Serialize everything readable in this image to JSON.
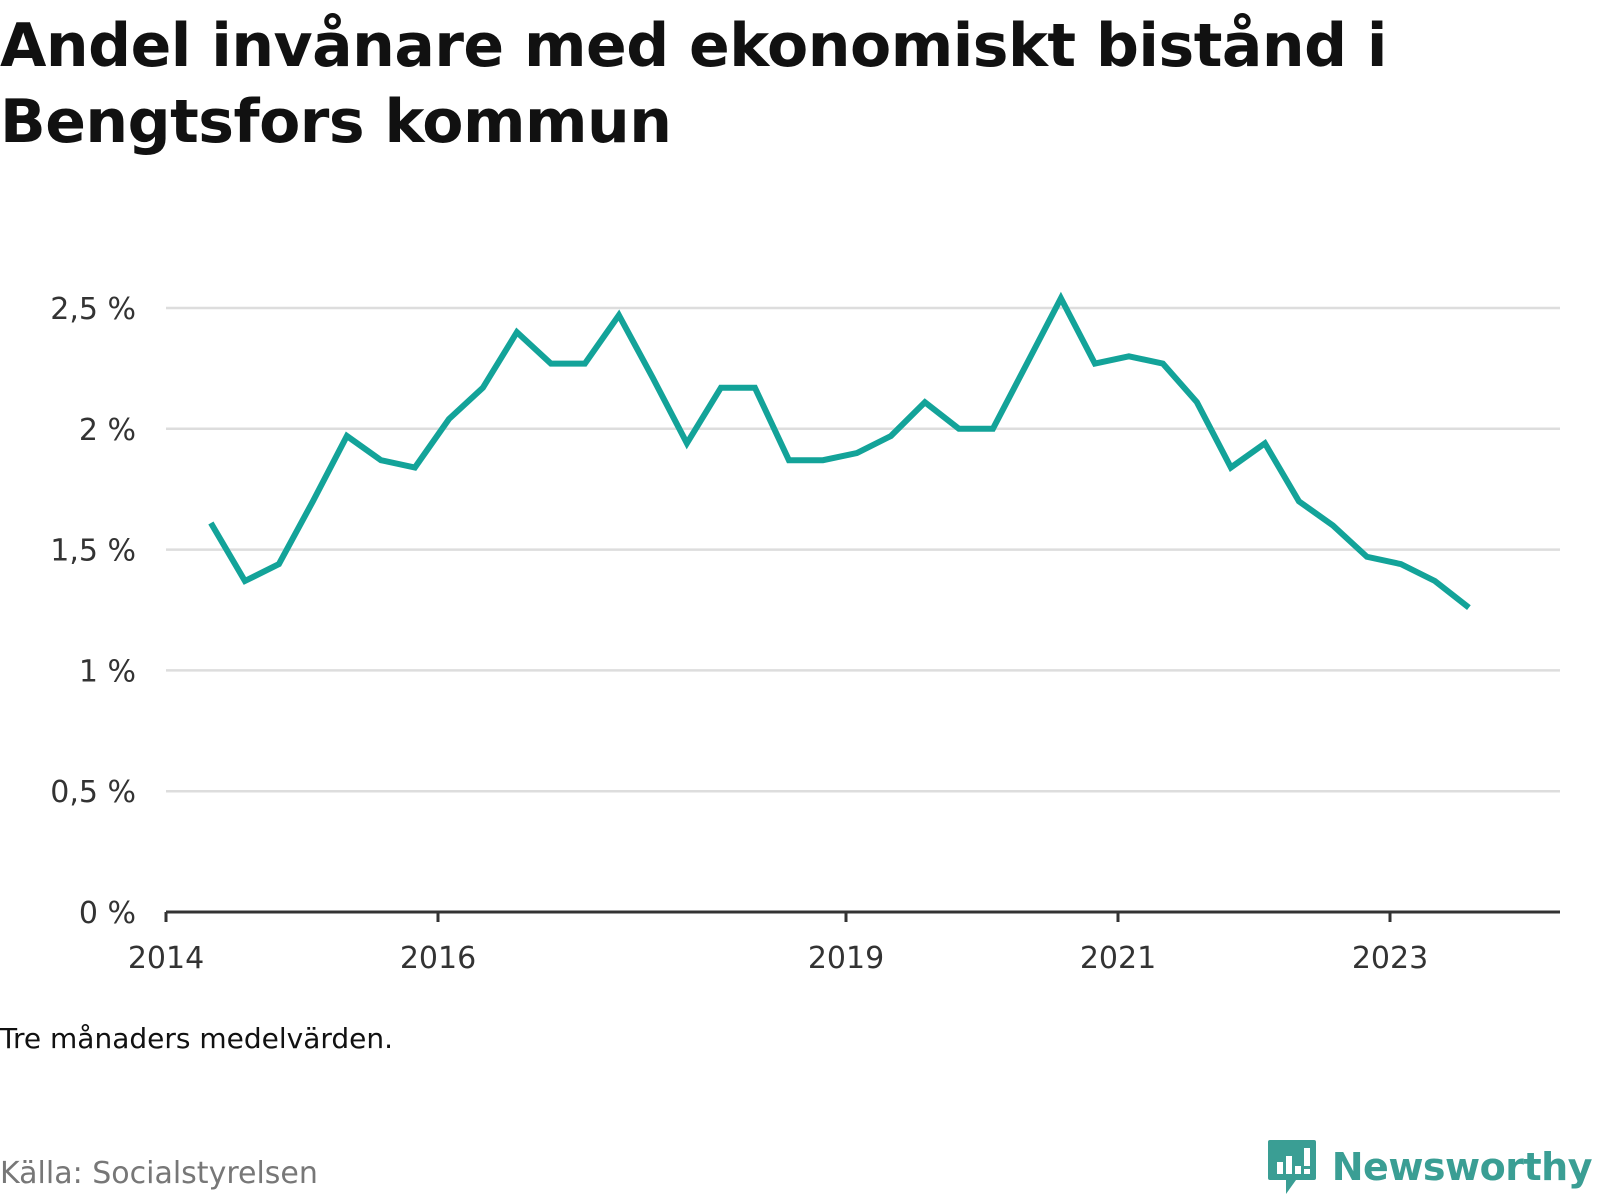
{
  "title": "Andel invånare med ekonomiskt bistånd i Bengtsfors kommun",
  "note": "Tre månaders medelvärden.",
  "source": "Källa: Socialstyrelsen",
  "brand": {
    "name": "Newsworthy",
    "icon": "newsworthy-logo-icon",
    "color": "#3a9e94"
  },
  "colors": {
    "line": "#13a399",
    "grid": "#dddddd",
    "axis": "#333333"
  },
  "chart_data": {
    "type": "line",
    "title": "Andel invånare med ekonomiskt bistånd i Bengtsfors kommun",
    "xlabel": "",
    "ylabel": "",
    "ylim": [
      0,
      2.5
    ],
    "xlim": [
      2014.0,
      2024.25
    ],
    "grid": true,
    "yticks": [
      {
        "value": 0,
        "label": "0 %"
      },
      {
        "value": 0.5,
        "label": "0,5 %"
      },
      {
        "value": 1,
        "label": "1 %"
      },
      {
        "value": 1.5,
        "label": "1,5 %"
      },
      {
        "value": 2,
        "label": "2 %"
      },
      {
        "value": 2.5,
        "label": "2,5 %"
      }
    ],
    "xticks": [
      {
        "value": 2014,
        "label": "2014"
      },
      {
        "value": 2016,
        "label": "2016"
      },
      {
        "value": 2019,
        "label": "2019"
      },
      {
        "value": 2021,
        "label": "2021"
      },
      {
        "value": 2023,
        "label": "2023"
      }
    ],
    "series": [
      {
        "x": [
          2014.33,
          2014.58,
          2014.83,
          2015.08,
          2015.33,
          2015.58,
          2015.83,
          2016.08,
          2016.33,
          2016.58,
          2016.83,
          2017.08,
          2017.33,
          2017.58,
          2017.83,
          2018.08,
          2018.33,
          2018.58,
          2018.83,
          2019.08,
          2019.33,
          2019.58,
          2019.83,
          2020.08,
          2020.33,
          2020.58,
          2020.83,
          2021.08,
          2021.33,
          2021.58,
          2021.83,
          2022.08,
          2022.33,
          2022.58,
          2022.83,
          2023.08,
          2023.33,
          2023.58
        ],
        "y": [
          1.61,
          1.37,
          1.44,
          1.7,
          1.97,
          1.87,
          1.84,
          2.04,
          2.17,
          2.4,
          2.27,
          2.27,
          2.47,
          2.21,
          1.94,
          2.17,
          2.17,
          1.87,
          1.87,
          1.9,
          1.97,
          2.11,
          2.0,
          2.0,
          2.27,
          2.54,
          2.27,
          2.3,
          2.27,
          2.11,
          1.84,
          1.94,
          1.7,
          1.6,
          1.47,
          1.44,
          1.37,
          1.26
        ]
      }
    ]
  }
}
